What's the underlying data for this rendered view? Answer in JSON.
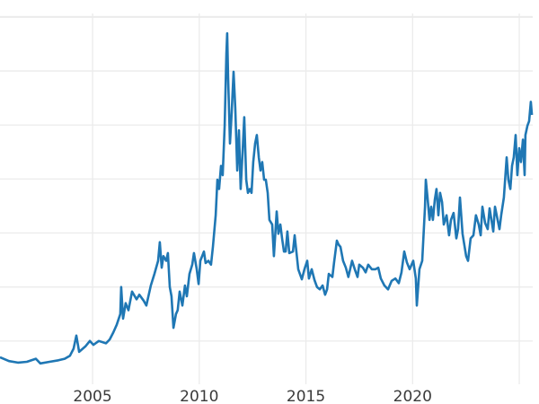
{
  "chart_data": {
    "type": "line",
    "title": "",
    "xlabel": "",
    "ylabel": "",
    "xlim": [
      2000.66,
      2025.63
    ],
    "ylim": [
      0,
      51.2
    ],
    "grid": true,
    "legend": "none",
    "x_ticks": [
      2005,
      2010,
      2015,
      2020,
      2025
    ],
    "x_tick_labels": [
      "2005",
      "2010",
      "2015",
      "2020",
      ""
    ],
    "y_gridlines": [
      7,
      14,
      21,
      28,
      35,
      42,
      49
    ],
    "y_tick_labels_visible": false,
    "colors": {
      "line": "#1f77b4",
      "grid": "#ebebeb",
      "tick_text": "#3a3a3a"
    },
    "series": [
      {
        "points": [
          [
            2000.66,
            4.9
          ],
          [
            2001.08,
            4.4
          ],
          [
            2001.5,
            4.2
          ],
          [
            2001.92,
            4.3
          ],
          [
            2002.34,
            4.7
          ],
          [
            2002.55,
            4.1
          ],
          [
            2002.98,
            4.3
          ],
          [
            2003.4,
            4.5
          ],
          [
            2003.69,
            4.7
          ],
          [
            2003.94,
            5.1
          ],
          [
            2004.11,
            6.0
          ],
          [
            2004.24,
            7.7
          ],
          [
            2004.37,
            5.6
          ],
          [
            2004.66,
            6.3
          ],
          [
            2004.87,
            7.0
          ],
          [
            2005.04,
            6.5
          ],
          [
            2005.29,
            7.0
          ],
          [
            2005.63,
            6.7
          ],
          [
            2005.8,
            7.2
          ],
          [
            2005.97,
            8.1
          ],
          [
            2006.13,
            9.1
          ],
          [
            2006.3,
            10.5
          ],
          [
            2006.34,
            14.0
          ],
          [
            2006.43,
            9.9
          ],
          [
            2006.55,
            11.9
          ],
          [
            2006.68,
            11.0
          ],
          [
            2006.85,
            13.4
          ],
          [
            2007.06,
            12.4
          ],
          [
            2007.19,
            13.0
          ],
          [
            2007.4,
            12.2
          ],
          [
            2007.52,
            11.6
          ],
          [
            2007.73,
            14.2
          ],
          [
            2007.9,
            15.7
          ],
          [
            2008.07,
            17.4
          ],
          [
            2008.15,
            19.8
          ],
          [
            2008.24,
            16.5
          ],
          [
            2008.32,
            18.0
          ],
          [
            2008.45,
            17.4
          ],
          [
            2008.53,
            18.4
          ],
          [
            2008.62,
            14.0
          ],
          [
            2008.7,
            12.8
          ],
          [
            2008.79,
            8.7
          ],
          [
            2008.91,
            10.5
          ],
          [
            2008.99,
            11.0
          ],
          [
            2009.08,
            13.4
          ],
          [
            2009.21,
            11.6
          ],
          [
            2009.33,
            14.2
          ],
          [
            2009.42,
            12.8
          ],
          [
            2009.54,
            15.7
          ],
          [
            2009.67,
            16.9
          ],
          [
            2009.75,
            18.4
          ],
          [
            2009.88,
            16.3
          ],
          [
            2009.97,
            14.4
          ],
          [
            2010.05,
            17.4
          ],
          [
            2010.22,
            18.6
          ],
          [
            2010.3,
            17.1
          ],
          [
            2010.43,
            17.4
          ],
          [
            2010.55,
            16.9
          ],
          [
            2010.64,
            19.2
          ],
          [
            2010.77,
            23.3
          ],
          [
            2010.85,
            27.9
          ],
          [
            2010.93,
            26.7
          ],
          [
            2011.02,
            29.7
          ],
          [
            2011.1,
            28.5
          ],
          [
            2011.19,
            34.9
          ],
          [
            2011.27,
            44.2
          ],
          [
            2011.31,
            46.9
          ],
          [
            2011.35,
            41.3
          ],
          [
            2011.44,
            32.6
          ],
          [
            2011.52,
            36.6
          ],
          [
            2011.61,
            41.9
          ],
          [
            2011.69,
            37.2
          ],
          [
            2011.78,
            29.1
          ],
          [
            2011.86,
            34.3
          ],
          [
            2011.94,
            26.7
          ],
          [
            2012.03,
            31.4
          ],
          [
            2012.11,
            36.0
          ],
          [
            2012.2,
            27.9
          ],
          [
            2012.28,
            26.2
          ],
          [
            2012.37,
            26.7
          ],
          [
            2012.45,
            26.2
          ],
          [
            2012.53,
            30.2
          ],
          [
            2012.62,
            32.6
          ],
          [
            2012.7,
            33.7
          ],
          [
            2012.79,
            30.8
          ],
          [
            2012.87,
            29.1
          ],
          [
            2012.95,
            30.2
          ],
          [
            2013.04,
            27.9
          ],
          [
            2013.12,
            27.9
          ],
          [
            2013.21,
            26.2
          ],
          [
            2013.29,
            22.7
          ],
          [
            2013.42,
            22.1
          ],
          [
            2013.5,
            18.0
          ],
          [
            2013.63,
            23.8
          ],
          [
            2013.71,
            20.9
          ],
          [
            2013.8,
            22.1
          ],
          [
            2013.88,
            20.3
          ],
          [
            2013.97,
            18.6
          ],
          [
            2014.05,
            18.6
          ],
          [
            2014.13,
            21.2
          ],
          [
            2014.22,
            18.4
          ],
          [
            2014.39,
            18.6
          ],
          [
            2014.47,
            20.7
          ],
          [
            2014.64,
            16.3
          ],
          [
            2014.81,
            15.0
          ],
          [
            2014.93,
            16.3
          ],
          [
            2015.06,
            17.4
          ],
          [
            2015.14,
            15.1
          ],
          [
            2015.27,
            16.3
          ],
          [
            2015.4,
            14.9
          ],
          [
            2015.52,
            14.0
          ],
          [
            2015.65,
            13.7
          ],
          [
            2015.78,
            14.2
          ],
          [
            2015.9,
            13.0
          ],
          [
            2015.99,
            13.7
          ],
          [
            2016.07,
            15.7
          ],
          [
            2016.24,
            15.3
          ],
          [
            2016.32,
            17.2
          ],
          [
            2016.45,
            20.0
          ],
          [
            2016.53,
            19.5
          ],
          [
            2016.62,
            19.2
          ],
          [
            2016.74,
            17.4
          ],
          [
            2016.87,
            16.5
          ],
          [
            2016.99,
            15.3
          ],
          [
            2017.16,
            17.4
          ],
          [
            2017.29,
            16.3
          ],
          [
            2017.42,
            15.3
          ],
          [
            2017.5,
            16.9
          ],
          [
            2017.67,
            16.5
          ],
          [
            2017.8,
            15.9
          ],
          [
            2017.92,
            16.9
          ],
          [
            2018.09,
            16.3
          ],
          [
            2018.26,
            16.3
          ],
          [
            2018.39,
            16.5
          ],
          [
            2018.51,
            15.1
          ],
          [
            2018.68,
            14.2
          ],
          [
            2018.85,
            13.7
          ],
          [
            2019.02,
            14.8
          ],
          [
            2019.19,
            15.1
          ],
          [
            2019.35,
            14.5
          ],
          [
            2019.48,
            15.9
          ],
          [
            2019.61,
            18.6
          ],
          [
            2019.73,
            17.2
          ],
          [
            2019.86,
            16.3
          ],
          [
            2020.03,
            17.4
          ],
          [
            2020.15,
            15.1
          ],
          [
            2020.2,
            11.6
          ],
          [
            2020.32,
            16.3
          ],
          [
            2020.45,
            17.4
          ],
          [
            2020.58,
            24.4
          ],
          [
            2020.62,
            27.9
          ],
          [
            2020.7,
            25.6
          ],
          [
            2020.79,
            22.7
          ],
          [
            2020.87,
            24.4
          ],
          [
            2020.95,
            22.7
          ],
          [
            2021.04,
            25.3
          ],
          [
            2021.12,
            26.7
          ],
          [
            2021.21,
            23.3
          ],
          [
            2021.29,
            26.2
          ],
          [
            2021.38,
            25.0
          ],
          [
            2021.46,
            22.1
          ],
          [
            2021.59,
            23.3
          ],
          [
            2021.71,
            20.7
          ],
          [
            2021.8,
            22.7
          ],
          [
            2021.92,
            23.6
          ],
          [
            2022.05,
            20.3
          ],
          [
            2022.13,
            21.5
          ],
          [
            2022.22,
            25.6
          ],
          [
            2022.34,
            20.9
          ],
          [
            2022.51,
            18.0
          ],
          [
            2022.6,
            17.4
          ],
          [
            2022.72,
            20.3
          ],
          [
            2022.85,
            20.7
          ],
          [
            2022.97,
            23.3
          ],
          [
            2023.1,
            22.1
          ],
          [
            2023.19,
            20.7
          ],
          [
            2023.27,
            24.4
          ],
          [
            2023.4,
            22.3
          ],
          [
            2023.52,
            21.5
          ],
          [
            2023.61,
            24.2
          ],
          [
            2023.78,
            21.2
          ],
          [
            2023.86,
            24.4
          ],
          [
            2023.94,
            23.3
          ],
          [
            2024.07,
            21.5
          ],
          [
            2024.15,
            23.3
          ],
          [
            2024.28,
            25.6
          ],
          [
            2024.41,
            30.8
          ],
          [
            2024.49,
            27.9
          ],
          [
            2024.58,
            26.7
          ],
          [
            2024.66,
            29.7
          ],
          [
            2024.74,
            30.8
          ],
          [
            2024.83,
            33.7
          ],
          [
            2024.91,
            28.5
          ],
          [
            2025.0,
            32.0
          ],
          [
            2025.08,
            30.2
          ],
          [
            2025.17,
            33.1
          ],
          [
            2025.25,
            28.5
          ],
          [
            2025.29,
            33.7
          ],
          [
            2025.38,
            34.9
          ],
          [
            2025.46,
            35.5
          ],
          [
            2025.54,
            38.0
          ],
          [
            2025.59,
            36.3
          ]
        ]
      }
    ]
  }
}
